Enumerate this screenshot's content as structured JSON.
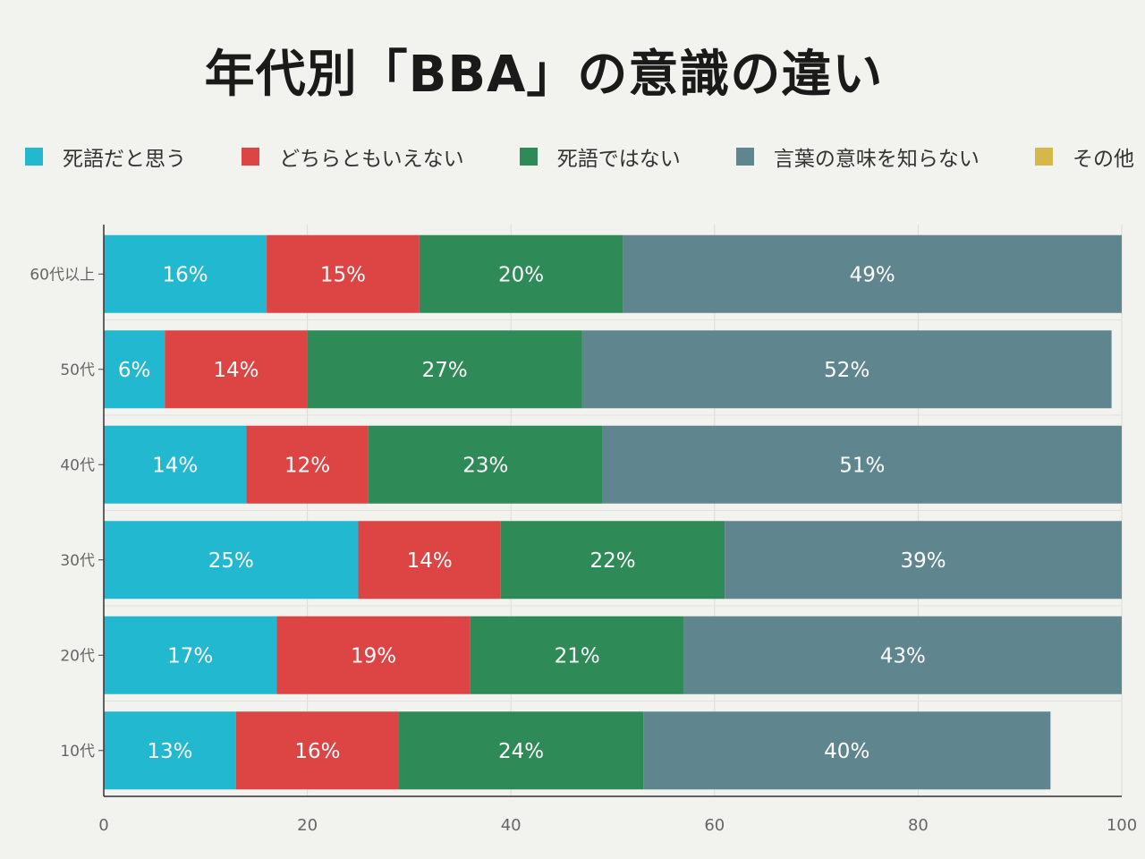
{
  "chart_data": {
    "type": "bar",
    "orientation": "horizontal",
    "stacked": true,
    "title": "年代別「BBA」の意識の違い",
    "categories": [
      "60代以上",
      "50代",
      "40代",
      "30代",
      "20代",
      "10代"
    ],
    "series": [
      {
        "name": "死語だと思う",
        "color": "#22b8d0",
        "values": [
          16,
          6,
          14,
          25,
          17,
          13
        ]
      },
      {
        "name": "どちらともいえない",
        "color": "#dd4444",
        "values": [
          15,
          14,
          12,
          14,
          19,
          16
        ]
      },
      {
        "name": "死語ではない",
        "color": "#2e8b57",
        "values": [
          20,
          27,
          23,
          22,
          21,
          24
        ]
      },
      {
        "name": "言葉の意味を知らない",
        "color": "#5f868e",
        "values": [
          49,
          52,
          51,
          39,
          43,
          40
        ]
      },
      {
        "name": "その他",
        "color": "#d4b84a",
        "values": [
          0,
          0,
          0,
          0,
          0,
          0
        ]
      }
    ],
    "value_suffix": "%",
    "xlim": [
      0,
      100
    ],
    "xticks": [
      0,
      20,
      40,
      60,
      80,
      100
    ],
    "grid": true,
    "legend_position": "top"
  }
}
